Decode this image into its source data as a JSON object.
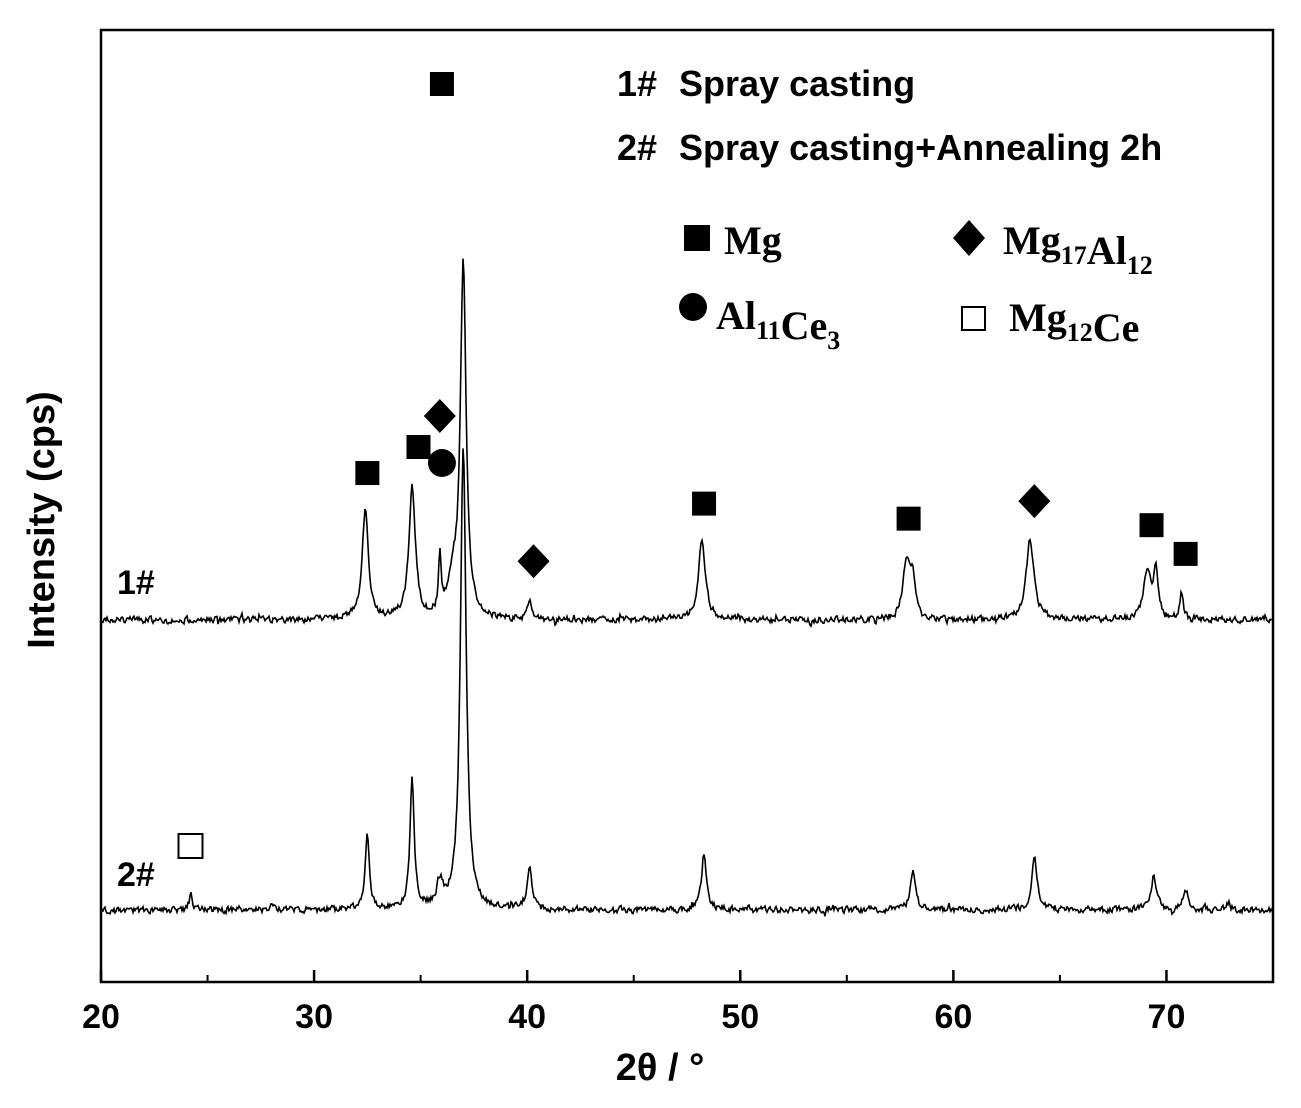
{
  "chart_data": {
    "type": "line",
    "title": "",
    "xlabel": "2θ / °",
    "ylabel": "Intensity (cps)",
    "xlim": [
      20,
      75
    ],
    "xticks": [
      20,
      30,
      40,
      50,
      60,
      70
    ],
    "x_tick_labels": [
      "20",
      "30",
      "40",
      "50",
      "60",
      "70"
    ],
    "y_ticks_shown": false,
    "grid": false,
    "legend": {
      "placement": "top-right",
      "series_entries": [
        {
          "id": "1#",
          "text": "Spray casting"
        },
        {
          "id": "2#",
          "text": "Spray casting+Annealing 2h"
        }
      ],
      "phases": [
        {
          "marker": "filled-square",
          "base": "Mg",
          "formula": [
            [
              "Mg",
              ""
            ]
          ]
        },
        {
          "marker": "filled-diamond",
          "base": "Mg17Al12",
          "formula": [
            [
              "Mg",
              "17"
            ],
            [
              "Al",
              "12"
            ]
          ]
        },
        {
          "marker": "filled-circle",
          "base": "Al11Ce3",
          "formula": [
            [
              "Al",
              "11"
            ],
            [
              "Ce",
              "3"
            ]
          ]
        },
        {
          "marker": "open-square",
          "base": "Mg12Ce",
          "formula": [
            [
              "Mg",
              "12"
            ],
            [
              "Ce",
              ""
            ]
          ]
        }
      ]
    },
    "series": [
      {
        "name": "1#",
        "label": "1#",
        "description": "Spray casting",
        "baseline": 0.0,
        "peaks": [
          {
            "x": 32.4,
            "h": 0.44,
            "w": 0.18
          },
          {
            "x": 34.6,
            "h": 0.54,
            "w": 0.18
          },
          {
            "x": 35.9,
            "h": 0.22,
            "w": 0.07
          },
          {
            "x": 36.5,
            "h": 0.14,
            "w": 0.25
          },
          {
            "x": 37.0,
            "h": 1.45,
            "w": 0.16
          },
          {
            "x": 40.1,
            "h": 0.08,
            "w": 0.1
          },
          {
            "x": 48.2,
            "h": 0.32,
            "w": 0.2
          },
          {
            "x": 57.8,
            "h": 0.23,
            "w": 0.2
          },
          {
            "x": 58.1,
            "h": 0.15,
            "w": 0.14
          },
          {
            "x": 63.6,
            "h": 0.33,
            "w": 0.22
          },
          {
            "x": 69.1,
            "h": 0.2,
            "w": 0.2
          },
          {
            "x": 69.5,
            "h": 0.19,
            "w": 0.13
          },
          {
            "x": 70.7,
            "h": 0.11,
            "w": 0.1
          }
        ]
      },
      {
        "name": "2#",
        "label": "2#",
        "description": "Spray casting+Annealing 2h",
        "baseline": 0.0,
        "peaks": [
          {
            "x": 24.2,
            "h": 0.07,
            "w": 0.07
          },
          {
            "x": 28.0,
            "h": 0.02,
            "w": 0.1
          },
          {
            "x": 32.5,
            "h": 0.3,
            "w": 0.12
          },
          {
            "x": 34.6,
            "h": 0.52,
            "w": 0.12
          },
          {
            "x": 35.9,
            "h": 0.1,
            "w": 0.18
          },
          {
            "x": 37.0,
            "h": 1.9,
            "w": 0.16
          },
          {
            "x": 40.1,
            "h": 0.17,
            "w": 0.14
          },
          {
            "x": 48.3,
            "h": 0.23,
            "w": 0.14
          },
          {
            "x": 58.1,
            "h": 0.16,
            "w": 0.14
          },
          {
            "x": 63.8,
            "h": 0.22,
            "w": 0.15
          },
          {
            "x": 69.4,
            "h": 0.14,
            "w": 0.16
          },
          {
            "x": 70.9,
            "h": 0.08,
            "w": 0.14
          },
          {
            "x": 72.9,
            "h": 0.03,
            "w": 0.12
          }
        ]
      }
    ],
    "annotations": [
      {
        "marker": "filled-square",
        "x": 32.5,
        "series": "1#"
      },
      {
        "marker": "filled-square",
        "x": 34.9,
        "series": "1#"
      },
      {
        "marker": "filled-square",
        "x": 36.0,
        "series": "1#"
      },
      {
        "marker": "filled-diamond",
        "x": 35.9,
        "series": "1#"
      },
      {
        "marker": "filled-circle",
        "x": 36.0,
        "series": "1#"
      },
      {
        "marker": "filled-diamond",
        "x": 40.3,
        "series": "1#"
      },
      {
        "marker": "filled-square",
        "x": 48.3,
        "series": "1#"
      },
      {
        "marker": "filled-square",
        "x": 57.9,
        "series": "1#"
      },
      {
        "marker": "filled-diamond",
        "x": 63.8,
        "series": "1#"
      },
      {
        "marker": "filled-square",
        "x": 69.3,
        "series": "1#"
      },
      {
        "marker": "filled-square",
        "x": 70.9,
        "series": "1#"
      },
      {
        "marker": "open-square",
        "x": 24.2,
        "series": "2#"
      }
    ]
  }
}
